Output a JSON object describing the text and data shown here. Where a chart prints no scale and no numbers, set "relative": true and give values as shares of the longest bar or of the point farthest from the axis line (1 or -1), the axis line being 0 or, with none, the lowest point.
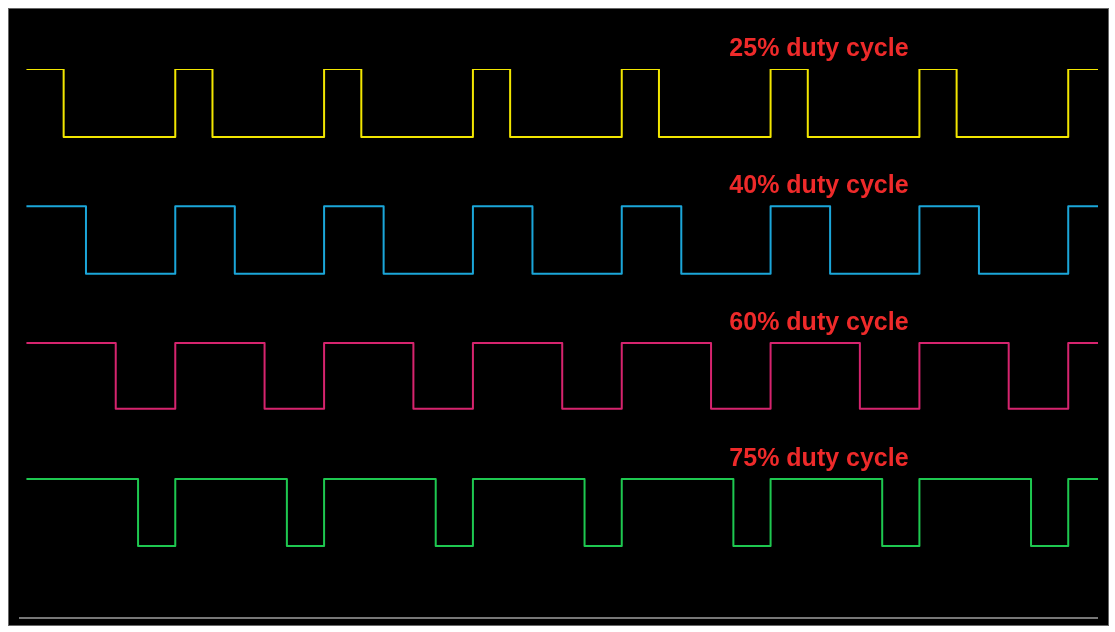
{
  "chart_data": {
    "type": "step",
    "relative": true,
    "legend": false,
    "categories": [
      null,
      null,
      null,
      null,
      null,
      null,
      null,
      null,
      null,
      null,
      null,
      null,
      null,
      null,
      null,
      null,
      null,
      null,
      null,
      null,
      null,
      null,
      null,
      null,
      null,
      null,
      null,
      null,
      null,
      null,
      null,
      null,
      null,
      null,
      null,
      null,
      null,
      null,
      null,
      null,
      null,
      null,
      null,
      null,
      null,
      null,
      null,
      null,
      null,
      null,
      null,
      null,
      null,
      null,
      null,
      null,
      null,
      null,
      null,
      null,
      null,
      null,
      null,
      null,
      null,
      null,
      null,
      null,
      null,
      null,
      null,
      null,
      null,
      null,
      null,
      null,
      null,
      null,
      null,
      null,
      null,
      null,
      null,
      null,
      null,
      null,
      null,
      null,
      null,
      null,
      null,
      null,
      null,
      null,
      null,
      null,
      null,
      null,
      null,
      null,
      null,
      null,
      null,
      null,
      null,
      null,
      null,
      null,
      null,
      null,
      null,
      null,
      null,
      null,
      null,
      null,
      null,
      null,
      null,
      null,
      null,
      null,
      null,
      null,
      null,
      null,
      null,
      null,
      null,
      null,
      null,
      null,
      null,
      null,
      null,
      null,
      null,
      null,
      null,
      null,
      null,
      null,
      null,
      null,
      null,
      null
    ],
    "series": [
      {
        "name": "25% duty cycle",
        "color": "#f2e600",
        "values": [
          null,
          1,
          1,
          1,
          1,
          1,
          0.876,
          0.876,
          0.876,
          0.876,
          0.876,
          0.876,
          0.876,
          0.876,
          0.876,
          0.876,
          0.876,
          0.876,
          0.876,
          0.876,
          0.876,
          1,
          1,
          1,
          1,
          1,
          0.876,
          0.876,
          0.876,
          0.876,
          0.876,
          0.876,
          0.876,
          0.876,
          0.876,
          0.876,
          0.876,
          0.876,
          0.876,
          0.876,
          0.876,
          1,
          1,
          1,
          1,
          1,
          0.876,
          0.876,
          0.876,
          0.876,
          0.876,
          0.876,
          0.876,
          0.876,
          0.876,
          0.876,
          0.876,
          0.876,
          0.876,
          0.876,
          0.876,
          1,
          1,
          1,
          1,
          1,
          0.876,
          0.876,
          0.876,
          0.876,
          0.876,
          0.876,
          0.876,
          0.876,
          0.876,
          0.876,
          0.876,
          0.876,
          0.876,
          0.876,
          0.876,
          1,
          1,
          1,
          1,
          1,
          0.876,
          0.876,
          0.876,
          0.876,
          0.876,
          0.876,
          0.876,
          0.876,
          0.876,
          0.876,
          0.876,
          0.876,
          0.876,
          0.876,
          0.876,
          1,
          1,
          1,
          1,
          1,
          0.876,
          0.876,
          0.876,
          0.876,
          0.876,
          0.876,
          0.876,
          0.876,
          0.876,
          0.876,
          0.876,
          0.876,
          0.876,
          0.876,
          0.876,
          1,
          1,
          1,
          1,
          1,
          0.876,
          0.876,
          0.876,
          0.876,
          0.876,
          0.876,
          0.876,
          0.876,
          0.876,
          0.876,
          0.876,
          0.876,
          0.876,
          0.876,
          0.876,
          1,
          1,
          1,
          1,
          1
        ]
      },
      {
        "name": "40% duty cycle",
        "color": "#1ba6d9",
        "values": [
          null,
          0.75,
          0.75,
          0.75,
          0.75,
          0.75,
          0.75,
          0.75,
          0.75,
          0.627,
          0.627,
          0.627,
          0.627,
          0.627,
          0.627,
          0.627,
          0.627,
          0.627,
          0.627,
          0.627,
          0.627,
          0.75,
          0.75,
          0.75,
          0.75,
          0.75,
          0.75,
          0.75,
          0.75,
          0.627,
          0.627,
          0.627,
          0.627,
          0.627,
          0.627,
          0.627,
          0.627,
          0.627,
          0.627,
          0.627,
          0.627,
          0.75,
          0.75,
          0.75,
          0.75,
          0.75,
          0.75,
          0.75,
          0.75,
          0.627,
          0.627,
          0.627,
          0.627,
          0.627,
          0.627,
          0.627,
          0.627,
          0.627,
          0.627,
          0.627,
          0.627,
          0.75,
          0.75,
          0.75,
          0.75,
          0.75,
          0.75,
          0.75,
          0.75,
          0.627,
          0.627,
          0.627,
          0.627,
          0.627,
          0.627,
          0.627,
          0.627,
          0.627,
          0.627,
          0.627,
          0.627,
          0.75,
          0.75,
          0.75,
          0.75,
          0.75,
          0.75,
          0.75,
          0.75,
          0.627,
          0.627,
          0.627,
          0.627,
          0.627,
          0.627,
          0.627,
          0.627,
          0.627,
          0.627,
          0.627,
          0.627,
          0.75,
          0.75,
          0.75,
          0.75,
          0.75,
          0.75,
          0.75,
          0.75,
          0.627,
          0.627,
          0.627,
          0.627,
          0.627,
          0.627,
          0.627,
          0.627,
          0.627,
          0.627,
          0.627,
          0.627,
          0.75,
          0.75,
          0.75,
          0.75,
          0.75,
          0.75,
          0.75,
          0.75,
          0.627,
          0.627,
          0.627,
          0.627,
          0.627,
          0.627,
          0.627,
          0.627,
          0.627,
          0.627,
          0.627,
          0.627,
          0.75,
          0.75,
          0.75,
          0.75,
          0.75
        ]
      },
      {
        "name": "60% duty cycle",
        "color": "#d6246e",
        "values": [
          null,
          0.501,
          0.501,
          0.501,
          0.501,
          0.501,
          0.501,
          0.501,
          0.501,
          0.501,
          0.501,
          0.501,
          0.501,
          0.381,
          0.381,
          0.381,
          0.381,
          0.381,
          0.381,
          0.381,
          0.381,
          0.501,
          0.501,
          0.501,
          0.501,
          0.501,
          0.501,
          0.501,
          0.501,
          0.501,
          0.501,
          0.501,
          0.501,
          0.381,
          0.381,
          0.381,
          0.381,
          0.381,
          0.381,
          0.381,
          0.381,
          0.501,
          0.501,
          0.501,
          0.501,
          0.501,
          0.501,
          0.501,
          0.501,
          0.501,
          0.501,
          0.501,
          0.501,
          0.381,
          0.381,
          0.381,
          0.381,
          0.381,
          0.381,
          0.381,
          0.381,
          0.501,
          0.501,
          0.501,
          0.501,
          0.501,
          0.501,
          0.501,
          0.501,
          0.501,
          0.501,
          0.501,
          0.501,
          0.381,
          0.381,
          0.381,
          0.381,
          0.381,
          0.381,
          0.381,
          0.381,
          0.501,
          0.501,
          0.501,
          0.501,
          0.501,
          0.501,
          0.501,
          0.501,
          0.501,
          0.501,
          0.501,
          0.501,
          0.381,
          0.381,
          0.381,
          0.381,
          0.381,
          0.381,
          0.381,
          0.381,
          0.501,
          0.501,
          0.501,
          0.501,
          0.501,
          0.501,
          0.501,
          0.501,
          0.501,
          0.501,
          0.501,
          0.501,
          0.381,
          0.381,
          0.381,
          0.381,
          0.381,
          0.381,
          0.381,
          0.381,
          0.501,
          0.501,
          0.501,
          0.501,
          0.501,
          0.501,
          0.501,
          0.501,
          0.501,
          0.501,
          0.501,
          0.501,
          0.381,
          0.381,
          0.381,
          0.381,
          0.381,
          0.381,
          0.381,
          0.381,
          0.501,
          0.501,
          0.501,
          0.501,
          0.501
        ]
      },
      {
        "name": "75% duty cycle",
        "color": "#1ec850",
        "values": [
          null,
          0.253,
          0.253,
          0.253,
          0.253,
          0.253,
          0.253,
          0.253,
          0.253,
          0.253,
          0.253,
          0.253,
          0.253,
          0.253,
          0.253,
          0.253,
          0.131,
          0.131,
          0.131,
          0.131,
          0.131,
          0.253,
          0.253,
          0.253,
          0.253,
          0.253,
          0.253,
          0.253,
          0.253,
          0.253,
          0.253,
          0.253,
          0.253,
          0.253,
          0.253,
          0.253,
          0.131,
          0.131,
          0.131,
          0.131,
          0.131,
          0.253,
          0.253,
          0.253,
          0.253,
          0.253,
          0.253,
          0.253,
          0.253,
          0.253,
          0.253,
          0.253,
          0.253,
          0.253,
          0.253,
          0.253,
          0.131,
          0.131,
          0.131,
          0.131,
          0.131,
          0.253,
          0.253,
          0.253,
          0.253,
          0.253,
          0.253,
          0.253,
          0.253,
          0.253,
          0.253,
          0.253,
          0.253,
          0.253,
          0.253,
          0.253,
          0.131,
          0.131,
          0.131,
          0.131,
          0.131,
          0.253,
          0.253,
          0.253,
          0.253,
          0.253,
          0.253,
          0.253,
          0.253,
          0.253,
          0.253,
          0.253,
          0.253,
          0.253,
          0.253,
          0.253,
          0.131,
          0.131,
          0.131,
          0.131,
          0.131,
          0.253,
          0.253,
          0.253,
          0.253,
          0.253,
          0.253,
          0.253,
          0.253,
          0.253,
          0.253,
          0.253,
          0.253,
          0.253,
          0.253,
          0.253,
          0.131,
          0.131,
          0.131,
          0.131,
          0.131,
          0.253,
          0.253,
          0.253,
          0.253,
          0.253,
          0.253,
          0.253,
          0.253,
          0.253,
          0.253,
          0.253,
          0.253,
          0.253,
          0.253,
          0.253,
          0.131,
          0.131,
          0.131,
          0.131,
          0.131,
          0.253,
          0.253,
          0.253,
          0.253,
          0.253
        ]
      }
    ]
  }
}
